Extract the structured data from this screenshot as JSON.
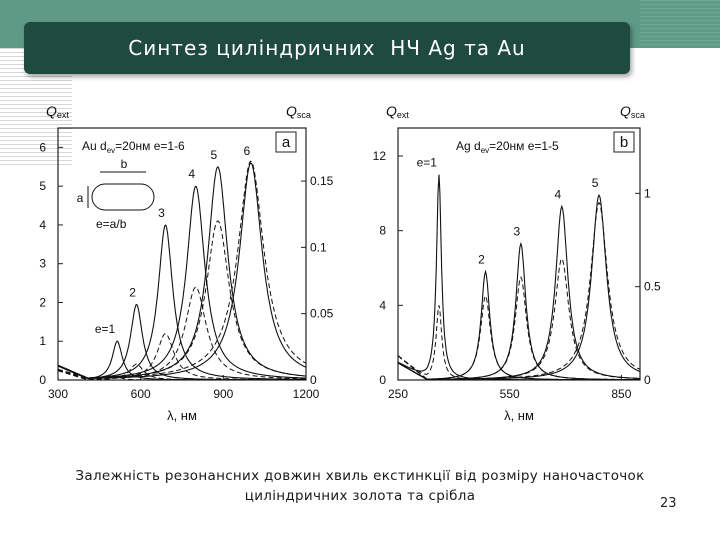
{
  "slide": {
    "title": "Синтез циліндричних  НЧ Ag та Au",
    "caption_line1": "Залежність резонансних довжин хвиль екстинкції від розміру наночасточок",
    "caption_line2": "циліндричних золота та срібла",
    "page_number": "23"
  },
  "colors": {
    "band": "#5f9a87",
    "title_bar": "#1f4a40",
    "title_text": "#ffffff"
  },
  "chart_data": [
    {
      "type": "line",
      "panel_label": "a",
      "legend_text": "Au d",
      "legend_sub": "ev",
      "legend_rest": "=20нм e=1-6",
      "inset_labels": {
        "b": "b",
        "a": "a",
        "formula": "e=a/b"
      },
      "left_axis_label": "Q",
      "left_axis_sub": "ext",
      "right_axis_label": "Q",
      "right_axis_sub": "sca",
      "x_label": "λ, нм",
      "xlim": [
        300,
        1200
      ],
      "ylim_left": [
        0,
        6.5
      ],
      "ylim_right": [
        0,
        0.19
      ],
      "x_ticks": [
        "300",
        "600",
        "900",
        "1200"
      ],
      "x_tick_values": [
        300,
        600,
        900,
        1200
      ],
      "y_ticks_left": [
        "0",
        "1",
        "2",
        "3",
        "4",
        "5",
        "6"
      ],
      "y_tick_values_left": [
        0,
        1,
        2,
        3,
        4,
        5,
        6
      ],
      "y_ticks_right": [
        "0",
        "0.05",
        "0.1",
        "0.15"
      ],
      "y_tick_values_right": [
        0,
        0.05,
        0.1,
        0.15
      ],
      "peaks": [
        {
          "e_label": "e=1",
          "center": 515,
          "ext": 1.0,
          "sca": 0.002,
          "width": 22
        },
        {
          "e_label": "2",
          "center": 585,
          "ext": 1.95,
          "sca": 0.012,
          "width": 26
        },
        {
          "e_label": "3",
          "center": 690,
          "ext": 4.0,
          "sca": 0.035,
          "width": 32
        },
        {
          "e_label": "4",
          "center": 800,
          "ext": 5.0,
          "sca": 0.07,
          "width": 40
        },
        {
          "e_label": "5",
          "center": 880,
          "ext": 5.5,
          "sca": 0.12,
          "width": 44
        },
        {
          "e_label": "6",
          "center": 1000,
          "ext": 5.6,
          "sca": 0.165,
          "width": 50
        }
      ]
    },
    {
      "type": "line",
      "panel_label": "b",
      "legend_text": "Ag d",
      "legend_sub": "ev",
      "legend_rest": "=20нм e=1-5",
      "left_axis_label": "Q",
      "left_axis_sub": "ext",
      "right_axis_label": "Q",
      "right_axis_sub": "sca",
      "x_label": "λ, нм",
      "xlim": [
        250,
        900
      ],
      "ylim_left": [
        0,
        13.5
      ],
      "ylim_right": [
        0,
        1.35
      ],
      "x_ticks": [
        "250",
        "550",
        "850"
      ],
      "x_tick_values": [
        250,
        550,
        850
      ],
      "y_ticks_left": [
        "0",
        "4",
        "8",
        "12"
      ],
      "y_tick_values_left": [
        0,
        4,
        8,
        12
      ],
      "y_ticks_right": [
        "0",
        "0.5",
        "1"
      ],
      "y_tick_values_right": [
        0,
        0.5,
        1
      ],
      "peaks": [
        {
          "e_label": "e=1",
          "center": 360,
          "ext": 11.0,
          "sca": 0.4,
          "width": 8
        },
        {
          "e_label": "2",
          "center": 485,
          "ext": 5.8,
          "sca": 0.45,
          "width": 14
        },
        {
          "e_label": "3",
          "center": 580,
          "ext": 7.3,
          "sca": 0.55,
          "width": 16
        },
        {
          "e_label": "4",
          "center": 690,
          "ext": 9.3,
          "sca": 0.65,
          "width": 20
        },
        {
          "e_label": "5",
          "center": 790,
          "ext": 9.9,
          "sca": 0.95,
          "width": 24
        }
      ]
    }
  ]
}
